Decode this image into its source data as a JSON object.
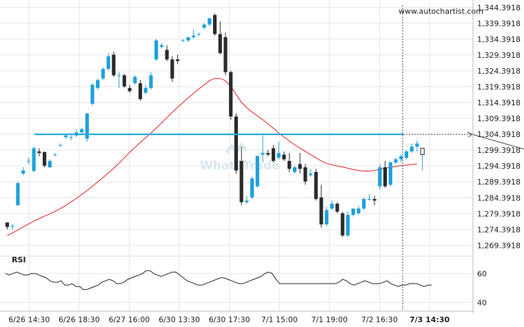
{
  "watermark": {
    "url": "www.autochartist.com",
    "logo_text": "What2Trade"
  },
  "colors": {
    "bull": "#1da1dc",
    "bear": "#2b2b2b",
    "ma": "#e02020",
    "level": "#2aa8de",
    "rsi": "#222222",
    "grid": "#e6e6e6"
  },
  "chart_data": {
    "type": "candlestick",
    "ylim": [
      1266,
      1345
    ],
    "yticks": [
      "1,344.3918",
      "1,339.3918",
      "1,334.3918",
      "1,329.3918",
      "1,324.3918",
      "1,319.3918",
      "1,314.3918",
      "1,309.3918",
      "1,304.3918",
      "1,299.3918",
      "1,294.3918",
      "1,289.3918",
      "1,284.3918",
      "1,279.3918",
      "1,274.3918",
      "1,269.3918"
    ],
    "ytick_values": [
      1344.3918,
      1339.3918,
      1334.3918,
      1329.3918,
      1324.3918,
      1319.3918,
      1314.3918,
      1309.3918,
      1304.3918,
      1299.3918,
      1294.3918,
      1289.3918,
      1284.3918,
      1279.3918,
      1274.3918,
      1269.3918
    ],
    "xticks": [
      "6/26 14:30",
      "6/26 18:30",
      "6/27 16:00",
      "6/30 13:30",
      "6/30 17:30",
      "7/1 15:00",
      "7/1 19:00",
      "7/2 16:30",
      "7/3 14:30"
    ],
    "xtick_bar_index": [
      5,
      17,
      29,
      41,
      53,
      65,
      77,
      89,
      101
    ],
    "level": 1304.3918,
    "projection": {
      "from_bar": 103,
      "from_value": 1296,
      "to_bar": 118,
      "to_value": 1304.4
    },
    "candles": [
      {
        "o": 1276.6,
        "h": 1276.6,
        "c": 1275.2,
        "l": 1274.5
      },
      {
        "o": 1275.5,
        "h": 1276.2,
        "c": 1275.5,
        "l": 1274.3
      },
      {
        "o": 1282.0,
        "h": 1289.5,
        "c": 1289.0,
        "l": 1282.0
      },
      {
        "o": 1292.0,
        "h": 1294.0,
        "c": 1293.0,
        "l": 1291.5
      },
      {
        "o": 1296.0,
        "h": 1297.0,
        "c": 1296.0,
        "l": 1295.0
      },
      {
        "o": 1292.8,
        "h": 1300.5,
        "c": 1300.0,
        "l": 1292.5
      },
      {
        "o": 1299.0,
        "h": 1300.0,
        "c": 1298.5,
        "l": 1297.5
      },
      {
        "o": 1298.8,
        "h": 1299.0,
        "c": 1294.5,
        "l": 1294.0
      },
      {
        "o": 1294.0,
        "h": 1296.5,
        "c": 1296.0,
        "l": 1293.8
      },
      {
        "o": 1298.0,
        "h": 1298.5,
        "c": 1298.0,
        "l": 1297.5
      },
      {
        "o": 1301.0,
        "h": 1301.5,
        "c": 1301.0,
        "l": 1300.5
      },
      {
        "o": 1303.5,
        "h": 1304.5,
        "c": 1304.0,
        "l": 1303.0
      },
      {
        "o": 1303.5,
        "h": 1304.0,
        "c": 1303.5,
        "l": 1302.5
      },
      {
        "o": 1304.0,
        "h": 1306.0,
        "c": 1305.0,
        "l": 1303.5
      },
      {
        "o": 1305.0,
        "h": 1306.5,
        "c": 1306.0,
        "l": 1304.5
      },
      {
        "o": 1303.0,
        "h": 1311.0,
        "c": 1311.0,
        "l": 1302.0
      },
      {
        "o": 1314.0,
        "h": 1320.5,
        "c": 1320.0,
        "l": 1313.5
      },
      {
        "o": 1319.0,
        "h": 1322.0,
        "c": 1321.5,
        "l": 1318.5
      },
      {
        "o": 1322.0,
        "h": 1325.5,
        "c": 1325.0,
        "l": 1321.5
      },
      {
        "o": 1325.0,
        "h": 1330.0,
        "c": 1329.0,
        "l": 1324.5
      },
      {
        "o": 1329.5,
        "h": 1330.5,
        "c": 1323.0,
        "l": 1322.5
      },
      {
        "o": 1323.0,
        "h": 1324.0,
        "c": 1323.0,
        "l": 1319.0
      },
      {
        "o": 1323.0,
        "h": 1323.5,
        "c": 1319.5,
        "l": 1319.0
      },
      {
        "o": 1319.0,
        "h": 1320.0,
        "c": 1318.0,
        "l": 1317.5
      },
      {
        "o": 1320.5,
        "h": 1323.0,
        "c": 1322.5,
        "l": 1320.0
      },
      {
        "o": 1320.5,
        "h": 1321.5,
        "c": 1315.5,
        "l": 1315.0
      },
      {
        "o": 1317.5,
        "h": 1320.0,
        "c": 1319.0,
        "l": 1317.0
      },
      {
        "o": 1319.0,
        "h": 1324.0,
        "c": 1323.0,
        "l": 1318.5
      },
      {
        "o": 1328.0,
        "h": 1334.5,
        "c": 1334.0,
        "l": 1327.5
      },
      {
        "o": 1332.0,
        "h": 1333.0,
        "c": 1332.5,
        "l": 1331.5
      },
      {
        "o": 1331.0,
        "h": 1332.5,
        "c": 1328.0,
        "l": 1327.5
      },
      {
        "o": 1328.0,
        "h": 1329.0,
        "c": 1322.0,
        "l": 1321.0
      },
      {
        "o": 1328.0,
        "h": 1329.5,
        "c": 1327.5,
        "l": 1326.5
      },
      {
        "o": 1334.0,
        "h": 1334.5,
        "c": 1334.0,
        "l": 1333.5
      },
      {
        "o": 1334.0,
        "h": 1335.0,
        "c": 1335.0,
        "l": 1333.5
      },
      {
        "o": 1335.0,
        "h": 1337.5,
        "c": 1335.5,
        "l": 1334.5
      },
      {
        "o": 1336.0,
        "h": 1336.5,
        "c": 1336.0,
        "l": 1335.5
      },
      {
        "o": 1338.0,
        "h": 1339.5,
        "c": 1339.0,
        "l": 1337.5
      },
      {
        "o": 1339.0,
        "h": 1341.0,
        "c": 1341.0,
        "l": 1338.5
      },
      {
        "o": 1342.0,
        "h": 1342.5,
        "c": 1336.0,
        "l": 1335.5
      },
      {
        "o": 1336.0,
        "h": 1340.0,
        "c": 1330.0,
        "l": 1329.5
      },
      {
        "o": 1335.0,
        "h": 1336.5,
        "c": 1324.0,
        "l": 1323.0
      },
      {
        "o": 1324.0,
        "h": 1324.5,
        "c": 1310.0,
        "l": 1309.0
      },
      {
        "o": 1310.0,
        "h": 1311.0,
        "c": 1293.0,
        "l": 1292.0
      },
      {
        "o": 1296.0,
        "h": 1300.5,
        "c": 1283.0,
        "l": 1282.0
      },
      {
        "o": 1283.0,
        "h": 1285.0,
        "c": 1283.5,
        "l": 1282.5
      },
      {
        "o": 1284.5,
        "h": 1291.0,
        "c": 1290.5,
        "l": 1284.0
      },
      {
        "o": 1288.0,
        "h": 1298.0,
        "c": 1297.5,
        "l": 1287.5
      },
      {
        "o": 1298.0,
        "h": 1304.0,
        "c": 1298.5,
        "l": 1295.5
      },
      {
        "o": 1298.5,
        "h": 1299.5,
        "c": 1298.0,
        "l": 1297.5
      },
      {
        "o": 1300.0,
        "h": 1301.0,
        "c": 1296.0,
        "l": 1295.5
      },
      {
        "o": 1297.0,
        "h": 1302.0,
        "c": 1298.5,
        "l": 1296.5
      },
      {
        "o": 1298.0,
        "h": 1299.0,
        "c": 1296.5,
        "l": 1296.0
      },
      {
        "o": 1296.0,
        "h": 1298.5,
        "c": 1293.5,
        "l": 1292.5
      },
      {
        "o": 1292.5,
        "h": 1294.5,
        "c": 1294.0,
        "l": 1292.0
      },
      {
        "o": 1295.0,
        "h": 1298.5,
        "c": 1293.5,
        "l": 1292.0
      },
      {
        "o": 1294.0,
        "h": 1295.0,
        "c": 1289.5,
        "l": 1288.5
      },
      {
        "o": 1291.5,
        "h": 1293.5,
        "c": 1292.0,
        "l": 1291.0
      },
      {
        "o": 1292.5,
        "h": 1293.5,
        "c": 1284.0,
        "l": 1283.5
      },
      {
        "o": 1284.5,
        "h": 1288.5,
        "c": 1276.0,
        "l": 1275.0
      },
      {
        "o": 1276.0,
        "h": 1281.5,
        "c": 1280.5,
        "l": 1275.5
      },
      {
        "o": 1281.0,
        "h": 1283.5,
        "c": 1282.5,
        "l": 1280.5
      },
      {
        "o": 1282.5,
        "h": 1283.0,
        "c": 1280.0,
        "l": 1279.5
      },
      {
        "o": 1279.5,
        "h": 1280.0,
        "c": 1272.5,
        "l": 1272.0
      },
      {
        "o": 1272.5,
        "h": 1280.0,
        "c": 1279.0,
        "l": 1272.0
      },
      {
        "o": 1279.0,
        "h": 1281.0,
        "c": 1281.0,
        "l": 1278.5
      },
      {
        "o": 1279.5,
        "h": 1282.0,
        "c": 1281.0,
        "l": 1279.0
      },
      {
        "o": 1281.0,
        "h": 1284.5,
        "c": 1284.0,
        "l": 1280.5
      },
      {
        "o": 1284.0,
        "h": 1285.5,
        "c": 1284.0,
        "l": 1283.5
      },
      {
        "o": 1284.0,
        "h": 1285.0,
        "c": 1283.5,
        "l": 1282.0
      },
      {
        "o": 1288.0,
        "h": 1295.0,
        "c": 1294.0,
        "l": 1287.0
      },
      {
        "o": 1294.0,
        "h": 1296.0,
        "c": 1288.0,
        "l": 1287.5
      },
      {
        "o": 1288.5,
        "h": 1296.0,
        "c": 1295.5,
        "l": 1288.0
      },
      {
        "o": 1295.5,
        "h": 1297.0,
        "c": 1296.5,
        "l": 1295.0
      },
      {
        "o": 1296.5,
        "h": 1298.0,
        "c": 1297.5,
        "l": 1295.5
      },
      {
        "o": 1297.0,
        "h": 1299.5,
        "c": 1299.0,
        "l": 1296.5
      },
      {
        "o": 1299.0,
        "h": 1301.5,
        "c": 1300.5,
        "l": 1298.5
      },
      {
        "o": 1300.5,
        "h": 1302.5,
        "c": 1301.5,
        "l": 1299.0
      },
      {
        "o": 1298.0,
        "h": 1300.0,
        "c": 1300.0,
        "l": 1293.0
      }
    ],
    "ma": [
      1272.5,
      1273.3,
      1274.2,
      1275.2,
      1276.1,
      1277.0,
      1277.8,
      1278.6,
      1279.3,
      1280.1,
      1281.0,
      1282.0,
      1283.1,
      1284.2,
      1285.4,
      1286.7,
      1288.0,
      1289.4,
      1290.8,
      1292.2,
      1293.7,
      1295.3,
      1297.0,
      1298.7,
      1300.3,
      1301.8,
      1303.3,
      1304.8,
      1306.4,
      1308.0,
      1309.7,
      1311.3,
      1312.9,
      1314.4,
      1315.9,
      1317.3,
      1318.7,
      1320.0,
      1321.3,
      1322.0,
      1322.0,
      1321.3,
      1319.5,
      1317.0,
      1314.5,
      1312.8,
      1311.4,
      1310.2,
      1309.0,
      1307.7,
      1306.3,
      1304.8,
      1303.5,
      1302.3,
      1301.1,
      1300.0,
      1299.0,
      1298.0,
      1297.0,
      1296.0,
      1295.2,
      1294.8,
      1294.4,
      1294.1,
      1293.7,
      1293.3,
      1293.0,
      1292.8,
      1292.8,
      1293.0,
      1293.3,
      1293.7,
      1294.0,
      1294.3,
      1294.5,
      1294.7,
      1294.9,
      1295.0
    ],
    "rsi": {
      "label": "RSI",
      "yticks": [
        "60",
        "40"
      ],
      "ytick_values": [
        60,
        40
      ],
      "ylim": [
        35,
        72
      ],
      "values": [
        60,
        59,
        60,
        61,
        60,
        59,
        59,
        60,
        60,
        59,
        58,
        57,
        55,
        54,
        54,
        55,
        52,
        52,
        53,
        51,
        51,
        49,
        49,
        50,
        51,
        52,
        54,
        55,
        56,
        55,
        53,
        53,
        54,
        56,
        57,
        58,
        59,
        60,
        62,
        62,
        60,
        59,
        58,
        59,
        60,
        61,
        61,
        59,
        57,
        55,
        54,
        53,
        52,
        52,
        53,
        54,
        55,
        56,
        57,
        57,
        56,
        55,
        54,
        53,
        53,
        54,
        55,
        56,
        57,
        58,
        60,
        61,
        60,
        56,
        53,
        53,
        53,
        53,
        53,
        53,
        53,
        53,
        53,
        53,
        53,
        53,
        53,
        53,
        53,
        53,
        54,
        56,
        55,
        53,
        52,
        53,
        54,
        55,
        54,
        53,
        53,
        53,
        54,
        55,
        53,
        52,
        51,
        52,
        52,
        53,
        53,
        53,
        52,
        51,
        52,
        52
      ]
    }
  }
}
